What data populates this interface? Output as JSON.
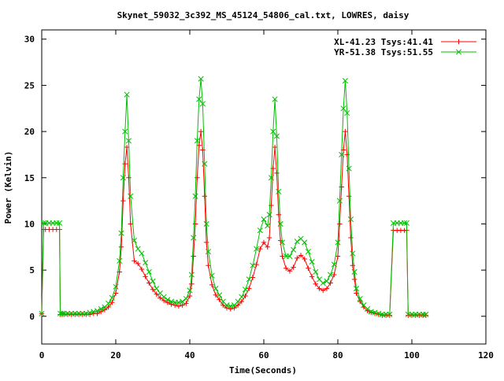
{
  "chart_data": {
    "type": "line",
    "title": "Skynet_59032_3c392_MS_45124_54806_cal.txt, LOWRES, daisy",
    "xlabel": "Time(Seconds)",
    "ylabel": "Power (Kelvin)",
    "xlim": [
      0,
      120
    ],
    "ylim": [
      -3,
      31
    ],
    "xticks": [
      0,
      20,
      40,
      60,
      80,
      100,
      120
    ],
    "yticks": [
      0,
      5,
      10,
      15,
      20,
      25,
      30
    ],
    "grid": false,
    "legend_position": "top-right",
    "series": [
      {
        "name": "XL-41.23 Tsys:41.41",
        "color": "#ff0000",
        "marker": "plus",
        "x": [
          0,
          0.5,
          1,
          2,
          3,
          4,
          4.8,
          5,
          5.5,
          6,
          7,
          8,
          9,
          10,
          11,
          12,
          13,
          14,
          15,
          16,
          17,
          18,
          19,
          20,
          21,
          21.5,
          22,
          22.5,
          23,
          23.5,
          24,
          25,
          26,
          27,
          28,
          29,
          30,
          31,
          32,
          33,
          34,
          35,
          36,
          37,
          38,
          39,
          40,
          40.5,
          41,
          41.5,
          42,
          42.5,
          43,
          43.5,
          44,
          44.5,
          45,
          46,
          47,
          48,
          49,
          50,
          51,
          52,
          53,
          54,
          55,
          56,
          57,
          58,
          59,
          60,
          61,
          61.5,
          62,
          62.5,
          63,
          63.5,
          64,
          64.5,
          65,
          66,
          67,
          68,
          69,
          70,
          71,
          72,
          73,
          74,
          75,
          76,
          77,
          78,
          79,
          80,
          80.5,
          81,
          81.5,
          82,
          82.5,
          83,
          83.5,
          84,
          84.5,
          85,
          86,
          87,
          88,
          89,
          90,
          91,
          92,
          93,
          94,
          95,
          96,
          97,
          98,
          98.6,
          99,
          100,
          101,
          102,
          103,
          103.8
        ],
        "y": [
          0.3,
          9.4,
          9.4,
          9.4,
          9.4,
          9.4,
          9.4,
          0.2,
          0.2,
          0.2,
          0.2,
          0.2,
          0.2,
          0.2,
          0.2,
          0.2,
          0.2,
          0.3,
          0.3,
          0.5,
          0.7,
          1.0,
          1.5,
          2.5,
          4.8,
          7.5,
          12.5,
          16.5,
          18.3,
          15.0,
          10.0,
          6.0,
          5.7,
          5.1,
          4.3,
          3.6,
          2.9,
          2.4,
          2.0,
          1.7,
          1.5,
          1.3,
          1.2,
          1.1,
          1.2,
          1.4,
          2.2,
          3.5,
          6.5,
          10.0,
          15.0,
          18.5,
          20.0,
          18.0,
          13.0,
          8.0,
          5.5,
          3.4,
          2.3,
          1.8,
          1.2,
          0.9,
          0.8,
          0.9,
          1.2,
          1.6,
          2.2,
          3.0,
          4.2,
          5.6,
          7.3,
          8.0,
          7.5,
          8.5,
          12.0,
          16.0,
          18.3,
          15.5,
          11.0,
          8.2,
          6.5,
          5.2,
          4.9,
          5.3,
          6.3,
          6.6,
          6.2,
          5.2,
          4.3,
          3.5,
          3.0,
          2.8,
          3.0,
          3.6,
          4.5,
          6.5,
          10.0,
          14.0,
          18.0,
          20.0,
          17.5,
          13.0,
          8.5,
          5.5,
          4.0,
          2.5,
          1.6,
          1.0,
          0.6,
          0.4,
          0.3,
          0.2,
          0.1,
          0.1,
          0.1,
          9.3,
          9.3,
          9.3,
          9.3,
          9.3,
          0.1,
          0.1,
          0.1,
          0.1,
          0.1,
          0.1
        ]
      },
      {
        "name": "YR-51.38 Tsys:51.55",
        "color": "#00c000",
        "marker": "cross",
        "x": [
          0,
          0.5,
          1,
          2,
          3,
          4,
          4.8,
          5,
          5.5,
          6,
          7,
          8,
          9,
          10,
          11,
          12,
          13,
          14,
          15,
          16,
          17,
          18,
          19,
          20,
          21,
          21.5,
          22,
          22.5,
          23,
          23.5,
          24,
          25,
          26,
          27,
          28,
          29,
          30,
          31,
          32,
          33,
          34,
          35,
          36,
          37,
          38,
          39,
          40,
          40.5,
          41,
          41.5,
          42,
          42.5,
          43,
          43.5,
          44,
          44.5,
          45,
          46,
          47,
          48,
          49,
          50,
          51,
          52,
          53,
          54,
          55,
          56,
          57,
          58,
          59,
          60,
          61,
          61.5,
          62,
          62.5,
          63,
          63.5,
          64,
          64.5,
          65,
          66,
          67,
          68,
          69,
          70,
          71,
          72,
          73,
          74,
          75,
          76,
          77,
          78,
          79,
          80,
          80.5,
          81,
          81.5,
          82,
          82.5,
          83,
          83.5,
          84,
          84.5,
          85,
          86,
          87,
          88,
          89,
          90,
          91,
          92,
          93,
          94,
          95,
          96,
          97,
          98,
          98.6,
          99,
          100,
          101,
          102,
          103,
          103.8
        ],
        "y": [
          0.3,
          10.1,
          10.1,
          10.1,
          10.1,
          10.1,
          10.1,
          0.3,
          0.3,
          0.3,
          0.3,
          0.3,
          0.3,
          0.3,
          0.3,
          0.3,
          0.4,
          0.5,
          0.6,
          0.8,
          1.0,
          1.4,
          2.0,
          3.2,
          6.0,
          9.0,
          15.0,
          20.0,
          24.0,
          19.0,
          13.0,
          8.2,
          7.3,
          6.8,
          5.8,
          4.8,
          3.8,
          3.0,
          2.5,
          2.1,
          1.8,
          1.6,
          1.5,
          1.5,
          1.6,
          1.9,
          2.8,
          4.5,
          8.5,
          13.0,
          19.0,
          23.5,
          25.7,
          23.0,
          16.5,
          10.0,
          7.0,
          4.4,
          3.0,
          2.3,
          1.6,
          1.2,
          1.1,
          1.2,
          1.6,
          2.1,
          2.9,
          4.0,
          5.5,
          7.3,
          9.3,
          10.5,
          9.8,
          11.0,
          15.0,
          20.0,
          23.5,
          19.5,
          13.5,
          10.0,
          8.0,
          6.5,
          6.5,
          7.2,
          8.1,
          8.4,
          8.0,
          7.0,
          5.9,
          4.8,
          4.0,
          3.6,
          3.8,
          4.5,
          5.6,
          8.0,
          12.5,
          17.5,
          22.5,
          25.5,
          22.0,
          16.0,
          10.5,
          6.8,
          4.8,
          3.0,
          1.9,
          1.2,
          0.8,
          0.5,
          0.4,
          0.3,
          0.2,
          0.2,
          0.2,
          10.1,
          10.1,
          10.1,
          10.1,
          10.1,
          0.2,
          0.2,
          0.2,
          0.2,
          0.2,
          0.2
        ]
      }
    ]
  }
}
